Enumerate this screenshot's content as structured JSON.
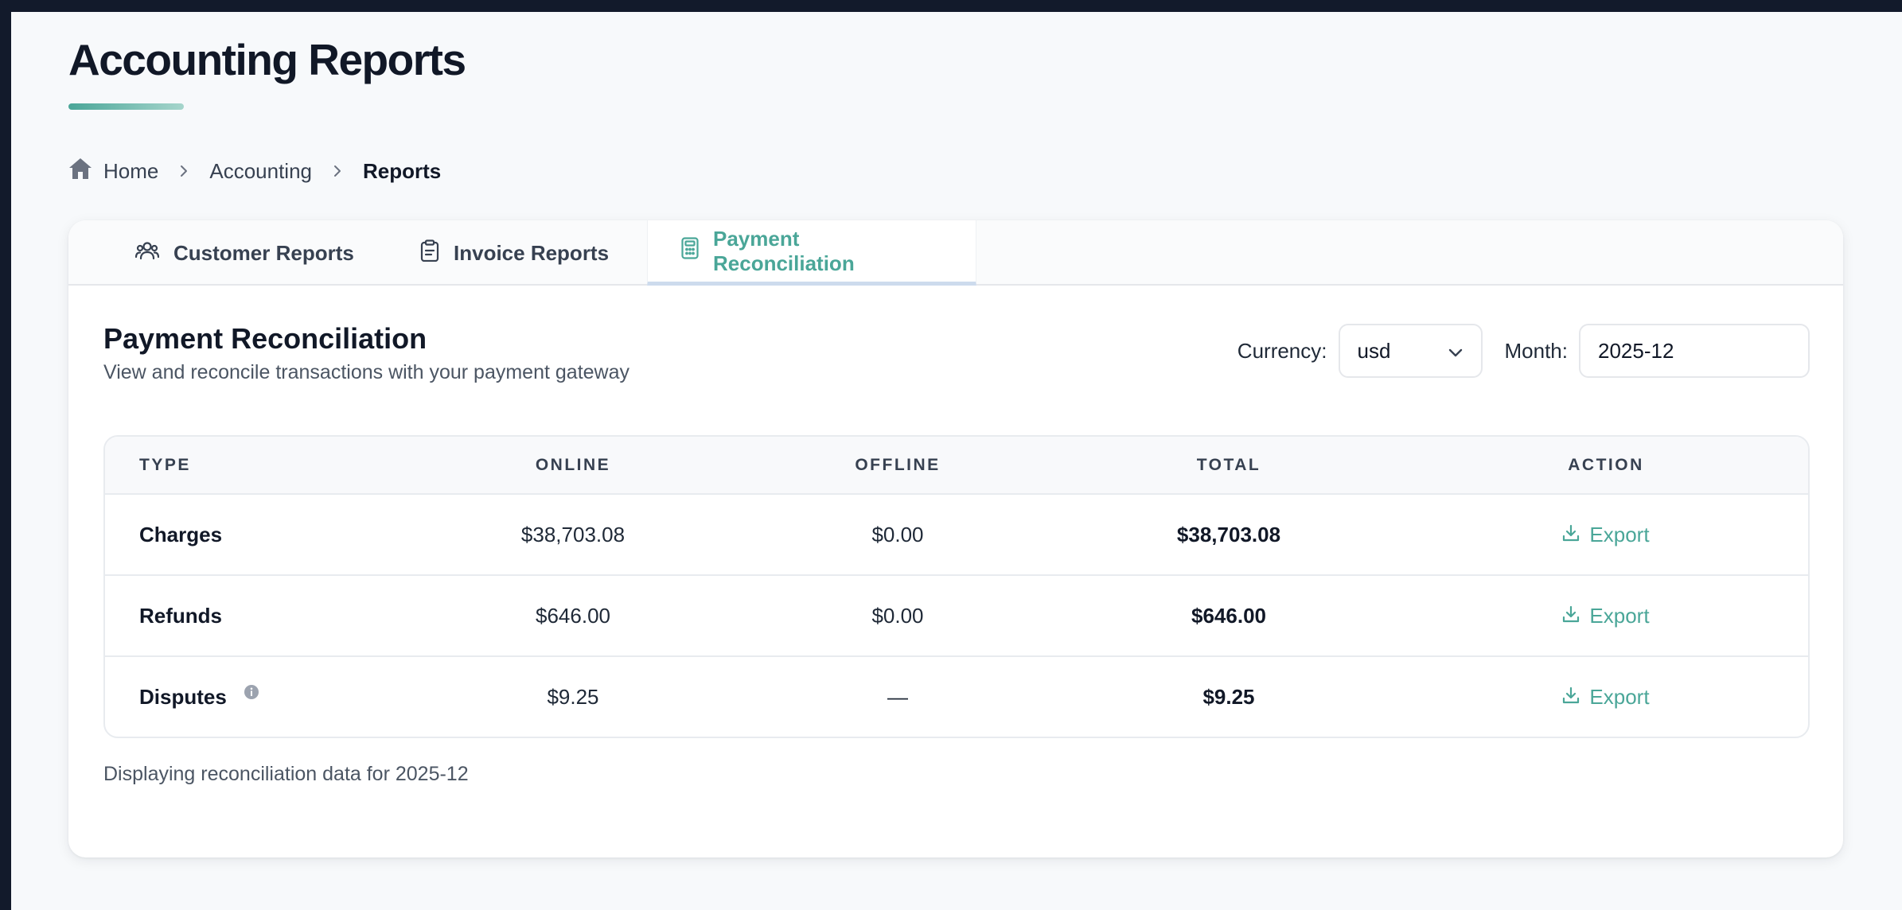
{
  "page": {
    "title": "Accounting Reports"
  },
  "breadcrumb": {
    "home": "Home",
    "accounting": "Accounting",
    "current": "Reports"
  },
  "tabs": [
    {
      "label": "Customer Reports",
      "icon": "users-icon"
    },
    {
      "label": "Invoice Reports",
      "icon": "clipboard-icon"
    },
    {
      "label": "Payment Reconciliation",
      "icon": "calculator-icon",
      "active": true
    }
  ],
  "section": {
    "title": "Payment Reconciliation",
    "subtitle": "View and reconcile transactions with your payment gateway"
  },
  "filters": {
    "currency_label": "Currency:",
    "currency_value": "usd",
    "month_label": "Month:",
    "month_value": "2025-12"
  },
  "table": {
    "headers": [
      "TYPE",
      "ONLINE",
      "OFFLINE",
      "TOTAL",
      "ACTION"
    ],
    "rows": [
      {
        "type": "Charges",
        "online": "$38,703.08",
        "offline": "$0.00",
        "total": "$38,703.08",
        "action": "Export"
      },
      {
        "type": "Refunds",
        "online": "$646.00",
        "offline": "$0.00",
        "total": "$646.00",
        "action": "Export"
      },
      {
        "type": "Disputes",
        "online": "$9.25",
        "offline": "—",
        "total": "$9.25",
        "action": "Export",
        "info_icon": "info-icon"
      }
    ]
  },
  "footnote": "Displaying reconciliation data for 2025-12",
  "colors": {
    "accent": "#4aa698",
    "top_bar": "#121a2b",
    "text": "#111827"
  }
}
